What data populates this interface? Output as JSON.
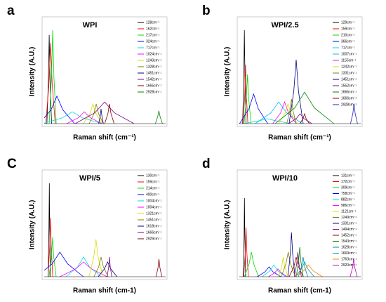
{
  "chart_data": [
    {
      "type": "line",
      "label": "a",
      "title": "WPI",
      "ylabel": "Intensity (A.U.)",
      "xlabel": "Raman shift (cm⁻¹)",
      "xlim": [
        0,
        3100
      ],
      "ylim": [
        0,
        1
      ],
      "series": [
        {
          "name": "128cm⁻¹",
          "color": "#000000",
          "x": [
            68,
            108,
            128,
            148,
            188
          ],
          "values": [
            0,
            0.45,
            0.9,
            0.45,
            0
          ]
        },
        {
          "name": "162cm⁻¹",
          "color": "#ff0000",
          "x": [
            42,
            122,
            162,
            202,
            282
          ],
          "values": [
            0,
            0.41,
            0.82,
            0.41,
            0
          ]
        },
        {
          "name": "217cm⁻¹",
          "color": "#00dd00",
          "x": [
            127,
            187,
            217,
            247,
            307
          ],
          "values": [
            0,
            0.48,
            0.95,
            0.48,
            0
          ]
        },
        {
          "name": "324cm⁻¹",
          "color": "#0000ff",
          "x": [
            -126,
            174,
            324,
            474,
            774
          ],
          "values": [
            0,
            0.14,
            0.28,
            0.14,
            0
          ]
        },
        {
          "name": "717cm⁻¹",
          "color": "#00dddd",
          "x": [
            -33,
            467,
            717,
            967,
            1467
          ],
          "values": [
            0,
            0.06,
            0.12,
            0.06,
            0
          ]
        },
        {
          "name": "1024cm⁻¹",
          "color": "#ff00ff",
          "x": [
            574,
            874,
            1024,
            1174,
            1474
          ],
          "values": [
            0,
            0.06,
            0.12,
            0.06,
            0
          ]
        },
        {
          "name": "1243cm⁻¹",
          "color": "#dddd00",
          "x": [
            1003,
            1163,
            1243,
            1323,
            1483
          ],
          "values": [
            0,
            0.1,
            0.2,
            0.1,
            0
          ]
        },
        {
          "name": "1328cm⁻¹",
          "color": "#808000",
          "x": [
            1148,
            1268,
            1328,
            1388,
            1508
          ],
          "values": [
            0,
            0.1,
            0.2,
            0.1,
            0
          ]
        },
        {
          "name": "1451cm⁻¹",
          "color": "#000080",
          "x": [
            1391,
            1431,
            1451,
            1471,
            1511
          ],
          "values": [
            0,
            0.08,
            0.15,
            0.08,
            0
          ]
        },
        {
          "name": "1542cm⁻¹",
          "color": "#800080",
          "x": [
            792,
            1292,
            1542,
            1792,
            2292
          ],
          "values": [
            0,
            0.11,
            0.22,
            0.11,
            0
          ]
        },
        {
          "name": "1665cm⁻¹",
          "color": "#800000",
          "x": [
            1545,
            1625,
            1665,
            1705,
            1785
          ],
          "values": [
            0,
            0.1,
            0.2,
            0.1,
            0
          ]
        },
        {
          "name": "2928cm⁻¹",
          "color": "#008000",
          "x": [
            2838,
            2898,
            2928,
            2958,
            3018
          ],
          "values": [
            0,
            0.07,
            0.13,
            0.07,
            0
          ]
        }
      ]
    },
    {
      "type": "line",
      "label": "b",
      "title": "WPI/2.5",
      "ylabel": "Intensity (A.U.)",
      "xlabel": "Raman shift (cm⁻¹)",
      "xlim": [
        0,
        3100
      ],
      "ylim": [
        0,
        1
      ],
      "series": [
        {
          "name": "129cm⁻¹",
          "color": "#000000",
          "x": [
            84,
            114,
            129,
            144,
            174
          ],
          "values": [
            0,
            0.48,
            0.95,
            0.48,
            0
          ]
        },
        {
          "name": "159cm⁻¹",
          "color": "#ff0000",
          "x": [
            99,
            139,
            159,
            179,
            219
          ],
          "values": [
            0,
            0.3,
            0.6,
            0.3,
            0
          ]
        },
        {
          "name": "210cm⁻¹",
          "color": "#00dd00",
          "x": [
            120,
            180,
            210,
            240,
            300
          ],
          "values": [
            0,
            0.25,
            0.5,
            0.25,
            0
          ]
        },
        {
          "name": "366cm⁻¹",
          "color": "#0000ff",
          "x": [
            6,
            246,
            366,
            486,
            726
          ],
          "values": [
            0,
            0.15,
            0.3,
            0.15,
            0
          ]
        },
        {
          "name": "717cm⁻¹",
          "color": "#00dddd",
          "x": [
            117,
            517,
            717,
            917,
            1317
          ],
          "values": [
            0,
            0.03,
            0.05,
            0.03,
            0
          ]
        },
        {
          "name": "1007cm⁻¹",
          "color": "#00bbff",
          "x": [
            407,
            807,
            1007,
            1207,
            1607
          ],
          "values": [
            0,
            0.11,
            0.22,
            0.11,
            0
          ]
        },
        {
          "name": "1155cm⁻¹",
          "color": "#ff00ff",
          "x": [
            855,
            1055,
            1155,
            1255,
            1455
          ],
          "values": [
            0,
            0.11,
            0.22,
            0.11,
            0
          ]
        },
        {
          "name": "1242cm⁻¹",
          "color": "#dddd00",
          "x": [
            1002,
            1162,
            1242,
            1322,
            1482
          ],
          "values": [
            0,
            0.1,
            0.2,
            0.1,
            0
          ]
        },
        {
          "name": "1331cm⁻¹",
          "color": "#808000",
          "x": [
            1211,
            1291,
            1331,
            1371,
            1451
          ],
          "values": [
            0,
            0.13,
            0.25,
            0.13,
            0
          ]
        },
        {
          "name": "1451cm⁻¹",
          "color": "#000080",
          "x": [
            1271,
            1391,
            1451,
            1511,
            1631
          ],
          "values": [
            0,
            0.33,
            0.65,
            0.33,
            0
          ]
        },
        {
          "name": "1552cm⁻¹",
          "color": "#800080",
          "x": [
            1252,
            1452,
            1552,
            1652,
            1852
          ],
          "values": [
            0,
            0.05,
            0.1,
            0.05,
            0
          ]
        },
        {
          "name": "1666cm⁻¹",
          "color": "#008000",
          "x": [
            916,
            1416,
            1666,
            1916,
            2416
          ],
          "values": [
            0,
            0.16,
            0.32,
            0.16,
            0
          ]
        },
        {
          "name": "1666cm⁻¹",
          "color": "#800000",
          "x": [
            1546,
            1626,
            1666,
            1706,
            1786
          ],
          "values": [
            0,
            0.05,
            0.1,
            0.05,
            0
          ]
        },
        {
          "name": "2928cm⁻¹",
          "color": "#2020c0",
          "x": [
            2838,
            2898,
            2928,
            2958,
            3018
          ],
          "values": [
            0,
            0.1,
            0.2,
            0.1,
            0
          ]
        }
      ]
    },
    {
      "type": "line",
      "label": "C",
      "title": "WPI/5",
      "ylabel": "Intensity (A.U.)",
      "xlabel": "Raman shift (cm-1)",
      "xlim": [
        0,
        3100
      ],
      "ylim": [
        0,
        1
      ],
      "series": [
        {
          "name": "130cm⁻¹",
          "color": "#000000",
          "x": [
            100,
            120,
            130,
            140,
            160
          ],
          "values": [
            0,
            0.48,
            0.95,
            0.48,
            0
          ]
        },
        {
          "name": "159cm⁻¹",
          "color": "#ff0000",
          "x": [
            99,
            139,
            159,
            179,
            219
          ],
          "values": [
            0,
            0.3,
            0.6,
            0.3,
            0
          ]
        },
        {
          "name": "214cm⁻¹",
          "color": "#00dd00",
          "x": [
            124,
            184,
            214,
            244,
            304
          ],
          "values": [
            0,
            0.2,
            0.4,
            0.2,
            0
          ]
        },
        {
          "name": "400cm⁻¹",
          "color": "#0000ff",
          "x": [
            -200,
            200,
            400,
            600,
            1000
          ],
          "values": [
            0,
            0.13,
            0.25,
            0.13,
            0
          ]
        },
        {
          "name": "1004cm⁻¹",
          "color": "#00dddd",
          "x": [
            554,
            854,
            1004,
            1154,
            1454
          ],
          "values": [
            0,
            0.1,
            0.2,
            0.1,
            0
          ]
        },
        {
          "name": "1004cm⁻¹",
          "color": "#ff00ff",
          "x": [
            404,
            804,
            1004,
            1204,
            1604
          ],
          "values": [
            0,
            0.08,
            0.15,
            0.08,
            0
          ]
        },
        {
          "name": "1321cm⁻¹",
          "color": "#dddd00",
          "x": [
            1141,
            1261,
            1321,
            1381,
            1501
          ],
          "values": [
            0,
            0.19,
            0.38,
            0.19,
            0
          ]
        },
        {
          "name": "1451cm⁻¹",
          "color": "#808000",
          "x": [
            1271,
            1391,
            1451,
            1511,
            1631
          ],
          "values": [
            0,
            0.1,
            0.2,
            0.1,
            0
          ]
        },
        {
          "name": "1618cm⁻¹",
          "color": "#000080",
          "x": [
            1378,
            1538,
            1618,
            1698,
            1858
          ],
          "values": [
            0,
            0.08,
            0.15,
            0.08,
            0
          ]
        },
        {
          "name": "1666cm⁻¹",
          "color": "#800080",
          "x": [
            1606,
            1646,
            1666,
            1686,
            1726
          ],
          "values": [
            0,
            0.1,
            0.2,
            0.1,
            0
          ]
        },
        {
          "name": "2929cm⁻¹",
          "color": "#800000",
          "x": [
            2854,
            2904,
            2929,
            2954,
            3004
          ],
          "values": [
            0,
            0.09,
            0.18,
            0.09,
            0
          ]
        }
      ]
    },
    {
      "type": "line",
      "label": "d",
      "title": "WPI/10",
      "ylabel": "Intensity (A.U.)",
      "xlabel": "Raman shift (cm-1)",
      "xlim": [
        0,
        3100
      ],
      "ylim": [
        0,
        1
      ],
      "series": [
        {
          "name": "131cm⁻¹",
          "color": "#000000",
          "x": [
            101,
            121,
            131,
            141,
            161
          ],
          "values": [
            0,
            0.4,
            0.8,
            0.4,
            0
          ]
        },
        {
          "name": "172cm⁻¹",
          "color": "#ff0000",
          "x": [
            112,
            152,
            172,
            192,
            232
          ],
          "values": [
            0,
            0.25,
            0.5,
            0.25,
            0
          ]
        },
        {
          "name": "309cm⁻¹",
          "color": "#00dd00",
          "x": [
            129,
            249,
            309,
            369,
            489
          ],
          "values": [
            0,
            0.13,
            0.25,
            0.13,
            0
          ]
        },
        {
          "name": "758cm⁻¹",
          "color": "#0000ff",
          "x": [
            458,
            658,
            758,
            858,
            1058
          ],
          "values": [
            0,
            0.05,
            0.1,
            0.05,
            0
          ]
        },
        {
          "name": "882cm⁻¹",
          "color": "#00dddd",
          "x": [
            582,
            782,
            882,
            982,
            1182
          ],
          "values": [
            0,
            0.06,
            0.12,
            0.06,
            0
          ]
        },
        {
          "name": "986cm⁻¹",
          "color": "#ff00ff",
          "x": [
            746,
            906,
            986,
            1066,
            1226
          ],
          "values": [
            0,
            0.04,
            0.08,
            0.04,
            0
          ]
        },
        {
          "name": "1121cm⁻¹",
          "color": "#dddd00",
          "x": [
            1001,
            1081,
            1121,
            1161,
            1241
          ],
          "values": [
            0,
            0.1,
            0.2,
            0.1,
            0
          ]
        },
        {
          "name": "1249cm⁻¹",
          "color": "#808000",
          "x": [
            1069,
            1189,
            1249,
            1309,
            1429
          ],
          "values": [
            0,
            0.13,
            0.25,
            0.13,
            0
          ]
        },
        {
          "name": "1331cm⁻¹",
          "color": "#000080",
          "x": [
            1241,
            1301,
            1331,
            1361,
            1421
          ],
          "values": [
            0,
            0.23,
            0.45,
            0.23,
            0
          ]
        },
        {
          "name": "1494cm⁻¹",
          "color": "#800080",
          "x": [
            1404,
            1464,
            1494,
            1524,
            1584
          ],
          "values": [
            0,
            0.13,
            0.25,
            0.13,
            0
          ]
        },
        {
          "name": "1452cm⁻¹",
          "color": "#800000",
          "x": [
            1272,
            1392,
            1452,
            1512,
            1632
          ],
          "values": [
            0,
            0.1,
            0.2,
            0.1,
            0
          ]
        },
        {
          "name": "1543cm⁻¹",
          "color": "#008000",
          "x": [
            1453,
            1513,
            1543,
            1573,
            1633
          ],
          "values": [
            0,
            0.15,
            0.3,
            0.15,
            0
          ]
        },
        {
          "name": "1628cm⁻¹",
          "color": "#0080c0",
          "x": [
            1508,
            1588,
            1628,
            1668,
            1748
          ],
          "values": [
            0,
            0.1,
            0.2,
            0.1,
            0
          ]
        },
        {
          "name": "1669cm⁻¹",
          "color": "#00a0a0",
          "x": [
            1429,
            1589,
            1669,
            1749,
            1909
          ],
          "values": [
            0,
            0.08,
            0.15,
            0.08,
            0
          ]
        },
        {
          "name": "1763cm⁻¹",
          "color": "#ff8000",
          "x": [
            1403,
            1643,
            1763,
            1883,
            2123
          ],
          "values": [
            0,
            0.06,
            0.12,
            0.06,
            0
          ]
        },
        {
          "name": "2920cm⁻¹",
          "color": "#c000c0",
          "x": [
            2830,
            2890,
            2920,
            2950,
            3010
          ],
          "values": [
            0,
            0.09,
            0.18,
            0.09,
            0
          ]
        }
      ]
    }
  ]
}
